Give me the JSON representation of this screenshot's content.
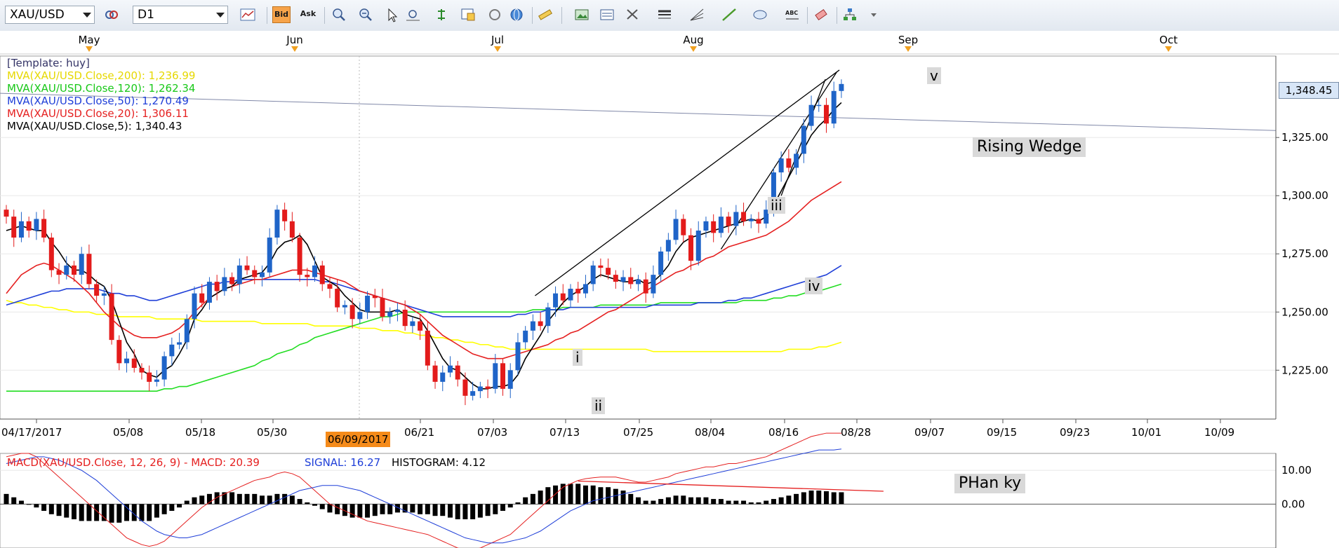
{
  "toolbar": {
    "symbol": "XAU/USD",
    "timeframe": "D1",
    "bid_label": "Bid",
    "ask_label": "Ask"
  },
  "colors": {
    "up_candle": "#1f64c8",
    "down_candle": "#e31b1b",
    "ma200": "#ffff00",
    "ma120": "#22dd22",
    "ma50": "#1f3fd8",
    "ma20": "#e52020",
    "ma5": "#000000",
    "macd": "#e52020",
    "signal": "#1f3fd8"
  },
  "legend": {
    "template": "[Template: huy]",
    "ma200": "MVA(XAU/USD.Close,200): 1,236.99",
    "ma120": "MVA(XAU/USD.Close,120): 1,262.34",
    "ma50": "MVA(XAU/USD.Close,50): 1,270.49",
    "ma20": "MVA(XAU/USD.Close,20): 1,306.11",
    "ma5": "MVA(XAU/USD.Close,5): 1,340.43"
  },
  "macd_legend": {
    "macd": "MACD(XAU/USD.Close, 12, 26, 9) -  MACD: 20.39",
    "signal": "SIGNAL: 16.27",
    "histogram": "HISTOGRAM: 4.12"
  },
  "annotations": {
    "wedge": "Rising Wedge",
    "phan_ky": "PHan ky",
    "wave_i": "i",
    "wave_ii": "ii",
    "wave_iii": "iii",
    "wave_iv": "iv",
    "wave_v": "v"
  },
  "current_price": "1,348.45",
  "highlight_date": "06/09/2017",
  "chart_data": {
    "type": "candlestick",
    "symbol": "XAU/USD",
    "timeframe": "D1",
    "month_labels": [
      "May",
      "Jun",
      "Jul",
      "Aug",
      "Sep",
      "Oct"
    ],
    "date_labels": [
      "04/17/2017",
      "05/08",
      "05/18",
      "05/30",
      "06/21",
      "07/03",
      "07/13",
      "07/25",
      "08/04",
      "08/16",
      "08/28",
      "09/07",
      "09/15",
      "09/23",
      "10/01",
      "10/09"
    ],
    "price_ticks": [
      "1,225.00",
      "1,250.00",
      "1,275.00",
      "1,300.00",
      "1,325.00"
    ],
    "price_tick_values": [
      1225,
      1250,
      1275,
      1300,
      1325
    ],
    "ylim": [
      1204,
      1360
    ],
    "macd_ticks": [
      "10.00",
      "0.00"
    ],
    "macd_tick_values": [
      10,
      0
    ],
    "macd_ylim": [
      -13,
      15
    ],
    "closes": [
      1291,
      1282,
      1289,
      1285,
      1290,
      1282,
      1268,
      1266,
      1270,
      1266,
      1275,
      1262,
      1257,
      1258,
      1238,
      1228,
      1230,
      1226,
      1224,
      1220,
      1221,
      1231,
      1236,
      1237,
      1247,
      1258,
      1254,
      1263,
      1259,
      1265,
      1262,
      1270,
      1268,
      1265,
      1267,
      1282,
      1294,
      1289,
      1282,
      1266,
      1265,
      1270,
      1262,
      1260,
      1252,
      1253,
      1247,
      1250,
      1257,
      1256,
      1248,
      1250,
      1251,
      1244,
      1246,
      1242,
      1227,
      1220,
      1224,
      1227,
      1221,
      1214,
      1216,
      1218,
      1217,
      1228,
      1217,
      1225,
      1237,
      1242,
      1246,
      1244,
      1252,
      1258,
      1255,
      1260,
      1258,
      1262,
      1270,
      1269,
      1266,
      1263,
      1265,
      1262,
      1264,
      1258,
      1266,
      1276,
      1281,
      1290,
      1283,
      1272,
      1285,
      1289,
      1284,
      1291,
      1287,
      1293,
      1289,
      1290,
      1288,
      1294,
      1310,
      1316,
      1312,
      1318,
      1330,
      1339,
      1339,
      1331,
      1345,
      1348
    ],
    "ma5": [
      1285,
      1286,
      1287,
      1286,
      1285,
      1285,
      1280,
      1276,
      1271,
      1268,
      1268,
      1266,
      1263,
      1261,
      1255,
      1246,
      1237,
      1232,
      1225,
      1223,
      1222,
      1225,
      1227,
      1232,
      1238,
      1247,
      1251,
      1256,
      1258,
      1260,
      1261,
      1264,
      1265,
      1266,
      1267,
      1271,
      1277,
      1280,
      1281,
      1283,
      1279,
      1272,
      1265,
      1263,
      1261,
      1257,
      1254,
      1251,
      1250,
      1250,
      1250,
      1250,
      1251,
      1249,
      1248,
      1247,
      1242,
      1236,
      1230,
      1226,
      1225,
      1222,
      1219,
      1217,
      1217,
      1218,
      1218,
      1219,
      1223,
      1230,
      1235,
      1240,
      1246,
      1250,
      1254,
      1257,
      1259,
      1261,
      1264,
      1266,
      1265,
      1264,
      1263,
      1263,
      1264,
      1262,
      1263,
      1266,
      1270,
      1276,
      1280,
      1282,
      1283,
      1284,
      1285,
      1286,
      1287,
      1288,
      1289,
      1290,
      1289,
      1291,
      1296,
      1302,
      1308,
      1314,
      1320,
      1326,
      1330,
      1333,
      1337,
      1340
    ],
    "ma20": [
      1258,
      1262,
      1266,
      1268,
      1270,
      1271,
      1270,
      1268,
      1266,
      1264,
      1261,
      1258,
      1254,
      1250,
      1247,
      1244,
      1242,
      1240,
      1239,
      1239,
      1239,
      1240,
      1241,
      1243,
      1246,
      1250,
      1253,
      1256,
      1258,
      1260,
      1261,
      1262,
      1263,
      1264,
      1264,
      1265,
      1266,
      1267,
      1268,
      1268,
      1268,
      1267,
      1266,
      1265,
      1264,
      1263,
      1261,
      1259,
      1258,
      1257,
      1256,
      1255,
      1254,
      1253,
      1251,
      1249,
      1246,
      1243,
      1240,
      1238,
      1236,
      1234,
      1232,
      1231,
      1230,
      1230,
      1230,
      1231,
      1232,
      1233,
      1234,
      1235,
      1236,
      1238,
      1239,
      1241,
      1242,
      1244,
      1246,
      1248,
      1250,
      1251,
      1253,
      1255,
      1257,
      1259,
      1261,
      1263,
      1265,
      1267,
      1268,
      1270,
      1271,
      1273,
      1274,
      1276,
      1278,
      1279,
      1280,
      1281,
      1282,
      1283,
      1285,
      1287,
      1289,
      1292,
      1295,
      1298,
      1300,
      1302,
      1304,
      1306
    ],
    "ma50": [
      1253,
      1254,
      1255,
      1256,
      1257,
      1258,
      1259,
      1259,
      1260,
      1260,
      1260,
      1260,
      1260,
      1259,
      1258,
      1258,
      1257,
      1257,
      1256,
      1255,
      1255,
      1256,
      1257,
      1258,
      1259,
      1260,
      1261,
      1262,
      1262,
      1263,
      1263,
      1264,
      1264,
      1264,
      1264,
      1264,
      1264,
      1264,
      1264,
      1264,
      1264,
      1264,
      1263,
      1263,
      1262,
      1261,
      1260,
      1259,
      1258,
      1257,
      1256,
      1255,
      1254,
      1253,
      1252,
      1251,
      1250,
      1249,
      1248,
      1248,
      1248,
      1248,
      1248,
      1248,
      1248,
      1248,
      1248,
      1248,
      1249,
      1249,
      1250,
      1250,
      1251,
      1251,
      1251,
      1252,
      1252,
      1252,
      1252,
      1252,
      1252,
      1252,
      1252,
      1252,
      1252,
      1252,
      1253,
      1253,
      1253,
      1253,
      1253,
      1253,
      1254,
      1254,
      1254,
      1254,
      1255,
      1255,
      1256,
      1256,
      1257,
      1258,
      1259,
      1260,
      1261,
      1262,
      1263,
      1264,
      1265,
      1266,
      1268,
      1270
    ],
    "ma120": [
      1216,
      1216,
      1216,
      1216,
      1216,
      1216,
      1216,
      1216,
      1216,
      1216,
      1216,
      1216,
      1216,
      1216,
      1216,
      1216,
      1216,
      1216,
      1216,
      1216,
      1216,
      1217,
      1217,
      1218,
      1218,
      1219,
      1220,
      1221,
      1222,
      1223,
      1224,
      1225,
      1226,
      1227,
      1229,
      1230,
      1232,
      1233,
      1234,
      1236,
      1237,
      1239,
      1240,
      1241,
      1242,
      1243,
      1244,
      1245,
      1246,
      1247,
      1248,
      1248,
      1249,
      1250,
      1250,
      1250,
      1250,
      1250,
      1250,
      1250,
      1250,
      1250,
      1250,
      1250,
      1250,
      1250,
      1250,
      1250,
      1250,
      1250,
      1251,
      1251,
      1251,
      1251,
      1252,
      1252,
      1252,
      1252,
      1252,
      1253,
      1253,
      1253,
      1253,
      1253,
      1253,
      1253,
      1253,
      1254,
      1254,
      1254,
      1254,
      1254,
      1254,
      1254,
      1254,
      1254,
      1254,
      1254,
      1255,
      1255,
      1255,
      1255,
      1256,
      1256,
      1257,
      1257,
      1258,
      1259,
      1259,
      1260,
      1261,
      1262
    ],
    "ma200": [
      1255,
      1254,
      1254,
      1253,
      1253,
      1252,
      1252,
      1251,
      1251,
      1250,
      1250,
      1250,
      1249,
      1249,
      1249,
      1248,
      1248,
      1248,
      1248,
      1248,
      1247,
      1247,
      1247,
      1247,
      1247,
      1247,
      1246,
      1246,
      1246,
      1246,
      1246,
      1246,
      1246,
      1246,
      1245,
      1245,
      1245,
      1245,
      1245,
      1245,
      1245,
      1244,
      1244,
      1244,
      1244,
      1244,
      1244,
      1243,
      1243,
      1243,
      1242,
      1242,
      1242,
      1241,
      1241,
      1240,
      1240,
      1239,
      1239,
      1238,
      1238,
      1237,
      1237,
      1236,
      1236,
      1235,
      1235,
      1234,
      1234,
      1234,
      1234,
      1234,
      1234,
      1234,
      1234,
      1234,
      1234,
      1234,
      1234,
      1234,
      1234,
      1234,
      1234,
      1234,
      1234,
      1234,
      1233,
      1233,
      1233,
      1233,
      1233,
      1233,
      1233,
      1233,
      1233,
      1233,
      1233,
      1233,
      1233,
      1233,
      1233,
      1233,
      1233,
      1233,
      1234,
      1234,
      1234,
      1234,
      1235,
      1235,
      1236,
      1237
    ],
    "histogram": [
      3,
      2,
      1,
      0,
      -1,
      -2,
      -3,
      -3.5,
      -4,
      -4.5,
      -5,
      -5,
      -5,
      -5,
      -5.5,
      -5.5,
      -5,
      -5,
      -5,
      -5,
      -4,
      -3,
      -2,
      -1,
      1,
      2,
      2.5,
      3,
      3.5,
      3.5,
      3.5,
      3,
      3,
      3,
      2.5,
      2.5,
      3,
      3,
      2.5,
      1.5,
      0.5,
      -0.5,
      -1.5,
      -2.5,
      -3,
      -3.5,
      -4,
      -4,
      -4,
      -3.5,
      -3,
      -3,
      -2.5,
      -2.5,
      -2.5,
      -3,
      -3,
      -3.5,
      -3.5,
      -4,
      -4.5,
      -4.5,
      -4.5,
      -4,
      -3.5,
      -3,
      -2,
      -1,
      0.5,
      2,
      3,
      4,
      5,
      5.5,
      6,
      6,
      6,
      5.5,
      5.5,
      5,
      5,
      4.5,
      4,
      3,
      2,
      1,
      1,
      1.5,
      2,
      2.5,
      2.5,
      2,
      2,
      2,
      1.5,
      1.5,
      1,
      1,
      1,
      0.5,
      0.5,
      1,
      1.5,
      2,
      2.5,
      3,
      3.5,
      4,
      4,
      3.8,
      3.5,
      3.5
    ],
    "macd_line": [
      14,
      14.5,
      15,
      15,
      14,
      12,
      10,
      8,
      6,
      4,
      2,
      0,
      -2,
      -4,
      -6,
      -8,
      -10,
      -11,
      -12,
      -12.5,
      -12,
      -11,
      -9,
      -7,
      -5,
      -3,
      -1,
      0.5,
      2,
      3,
      4,
      5,
      6,
      7,
      7.5,
      8,
      9,
      9.5,
      9,
      8,
      6,
      4,
      2,
      0,
      -1,
      -2,
      -3,
      -4,
      -5,
      -5.5,
      -6,
      -6.5,
      -7,
      -7.5,
      -8,
      -8.5,
      -9,
      -10,
      -11,
      -12,
      -13,
      -13.5,
      -13.5,
      -13,
      -12,
      -11,
      -10,
      -9,
      -7,
      -5,
      -3,
      -1,
      1,
      3,
      5,
      6,
      7,
      7.5,
      7.8,
      8,
      8,
      8,
      7.5,
      7,
      6.5,
      6.5,
      7,
      7.5,
      8,
      9,
      9.5,
      10,
      10.5,
      11,
      11,
      11.5,
      12,
      12,
      12.5,
      13,
      13.5,
      14,
      15,
      16,
      17,
      18,
      19,
      20,
      20.5,
      21,
      21,
      21
    ],
    "signal_line": [
      12,
      12.5,
      13,
      13.5,
      14,
      14,
      13.5,
      13,
      12,
      11,
      10,
      8.5,
      7,
      5,
      3,
      1,
      -1,
      -3,
      -5,
      -6.5,
      -8,
      -9,
      -9.5,
      -10,
      -10,
      -9.5,
      -9,
      -8,
      -7,
      -6,
      -5,
      -4,
      -3,
      -2,
      -1,
      0,
      1,
      2,
      3,
      4,
      4.5,
      5,
      5.5,
      5.5,
      5.5,
      5,
      4.5,
      4,
      3,
      2,
      1,
      0,
      -1,
      -2,
      -3,
      -4,
      -5,
      -6,
      -7,
      -8,
      -9,
      -10,
      -10.5,
      -11,
      -11.5,
      -11.5,
      -11.5,
      -11,
      -10.5,
      -10,
      -9,
      -8,
      -6.5,
      -5,
      -3.5,
      -2,
      -1,
      0,
      1,
      1.5,
      2,
      2.5,
      3,
      3.5,
      4,
      4.5,
      5,
      5.5,
      6,
      6.5,
      7,
      7.5,
      8,
      8.5,
      9,
      9.5,
      10,
      10.5,
      11,
      11.5,
      12,
      12.5,
      13,
      13.5,
      14,
      14.5,
      15,
      15.5,
      16,
      16,
      16,
      16.3
    ]
  }
}
